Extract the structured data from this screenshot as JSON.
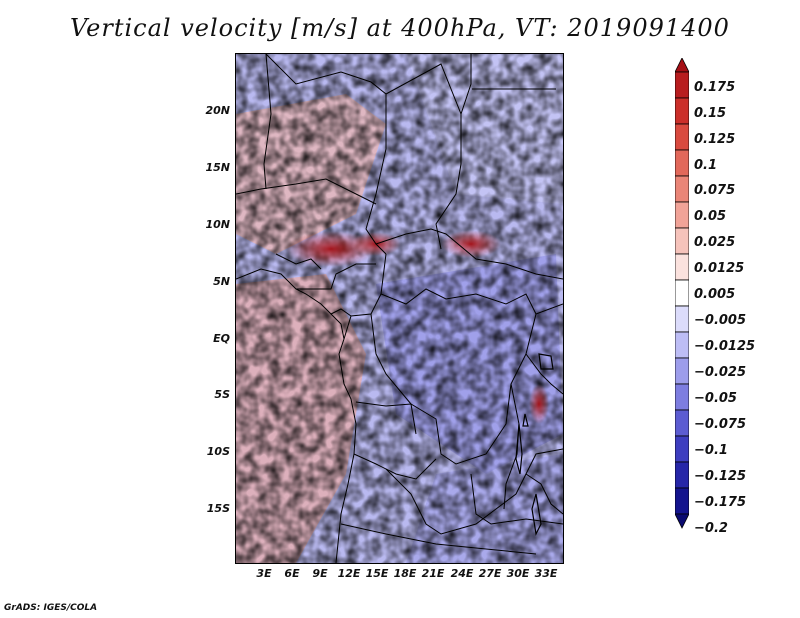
{
  "title": "Vertical velocity [m/s] at 400hPa, VT: 2019091400",
  "footer": "GrADS: IGES/COLA",
  "map": {
    "lat_labels": [
      "20N",
      "15N",
      "10N",
      "5N",
      "EQ",
      "5S",
      "10S",
      "15S"
    ],
    "lon_labels": [
      "3E",
      "6E",
      "9E",
      "12E",
      "15E",
      "18E",
      "21E",
      "24E",
      "27E",
      "30E",
      "33E"
    ],
    "lat_range": [
      -20,
      25
    ],
    "lon_range": [
      0,
      34.5
    ]
  },
  "colorbar": {
    "labels": [
      "0.175",
      "0.15",
      "0.125",
      "0.1",
      "0.075",
      "0.05",
      "0.025",
      "0.0125",
      "0.005",
      "−0.005",
      "−0.0125",
      "−0.025",
      "−0.05",
      "−0.075",
      "−0.1",
      "−0.125",
      "−0.175",
      "−0.2"
    ],
    "colors": [
      "#a50f15",
      "#b81d1f",
      "#cb2f2a",
      "#d94a3f",
      "#e2685a",
      "#ea8577",
      "#f1a398",
      "#f6c3bb",
      "#fbe2de",
      "#ffffff",
      "#dcdcfb",
      "#bdbdf5",
      "#9d9deb",
      "#7d7de0",
      "#5c5cd2",
      "#3e3ec0",
      "#2626a8",
      "#14148e",
      "#0a0a70"
    ]
  }
}
